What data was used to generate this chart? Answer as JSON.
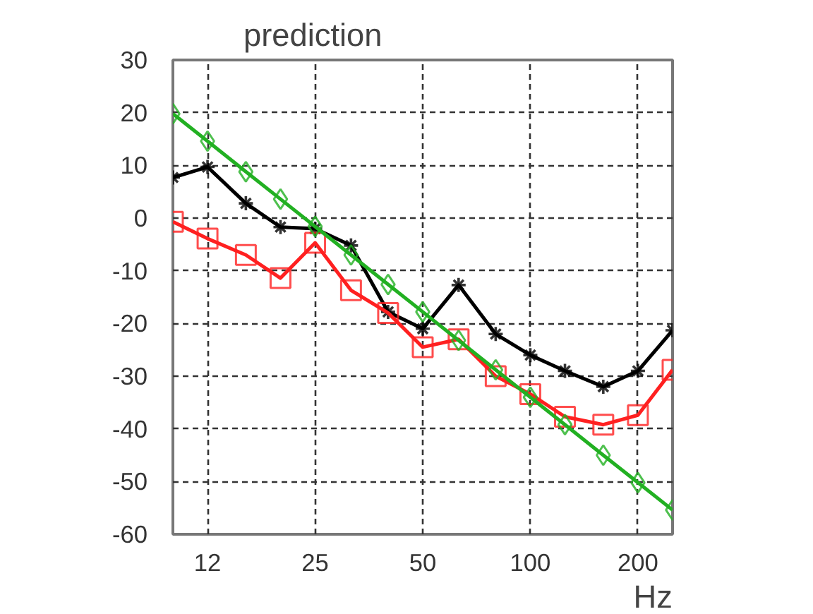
{
  "chart_data": {
    "type": "line",
    "title": "prediction",
    "xlabel": "Hz",
    "log": "x",
    "x": [
      10,
      12.5,
      16,
      20,
      25,
      31.5,
      40,
      50,
      63,
      80,
      100,
      125,
      160,
      200,
      250
    ],
    "series": [
      {
        "color": "#000000",
        "marker": "cross",
        "values": [
          7.7,
          9.7,
          2.8,
          -1.7,
          -2,
          -5.2,
          -17.8,
          -21,
          -12.7,
          -22,
          -26,
          -29,
          -32,
          -29,
          -21.3
        ]
      },
      {
        "color": "#ff2020",
        "marker": "square",
        "values": [
          -0.7,
          -3.9,
          -7,
          -11.4,
          -4.7,
          -13.7,
          -18,
          -24.5,
          -23,
          -30,
          -33.4,
          -37.7,
          -39.2,
          -37.4,
          -28.8
        ]
      },
      {
        "color": "#22b022",
        "marker": "diamond",
        "values": [
          19.8,
          14.6,
          8.8,
          3.6,
          -1.6,
          -7,
          -12.6,
          -17.8,
          -23.2,
          -28.8,
          -34,
          -39.2,
          -45,
          -50.2,
          -55.4
        ]
      }
    ],
    "xlim": [
      10,
      250
    ],
    "ylim": [
      -60,
      30
    ],
    "xticks": [
      {
        "value": 12.5,
        "label": "12"
      },
      25,
      50,
      100,
      200
    ],
    "yticks": [
      -60,
      -50,
      -40,
      -30,
      -20,
      -10,
      0,
      10,
      20,
      30
    ],
    "grid": true,
    "line_style": "solid"
  }
}
